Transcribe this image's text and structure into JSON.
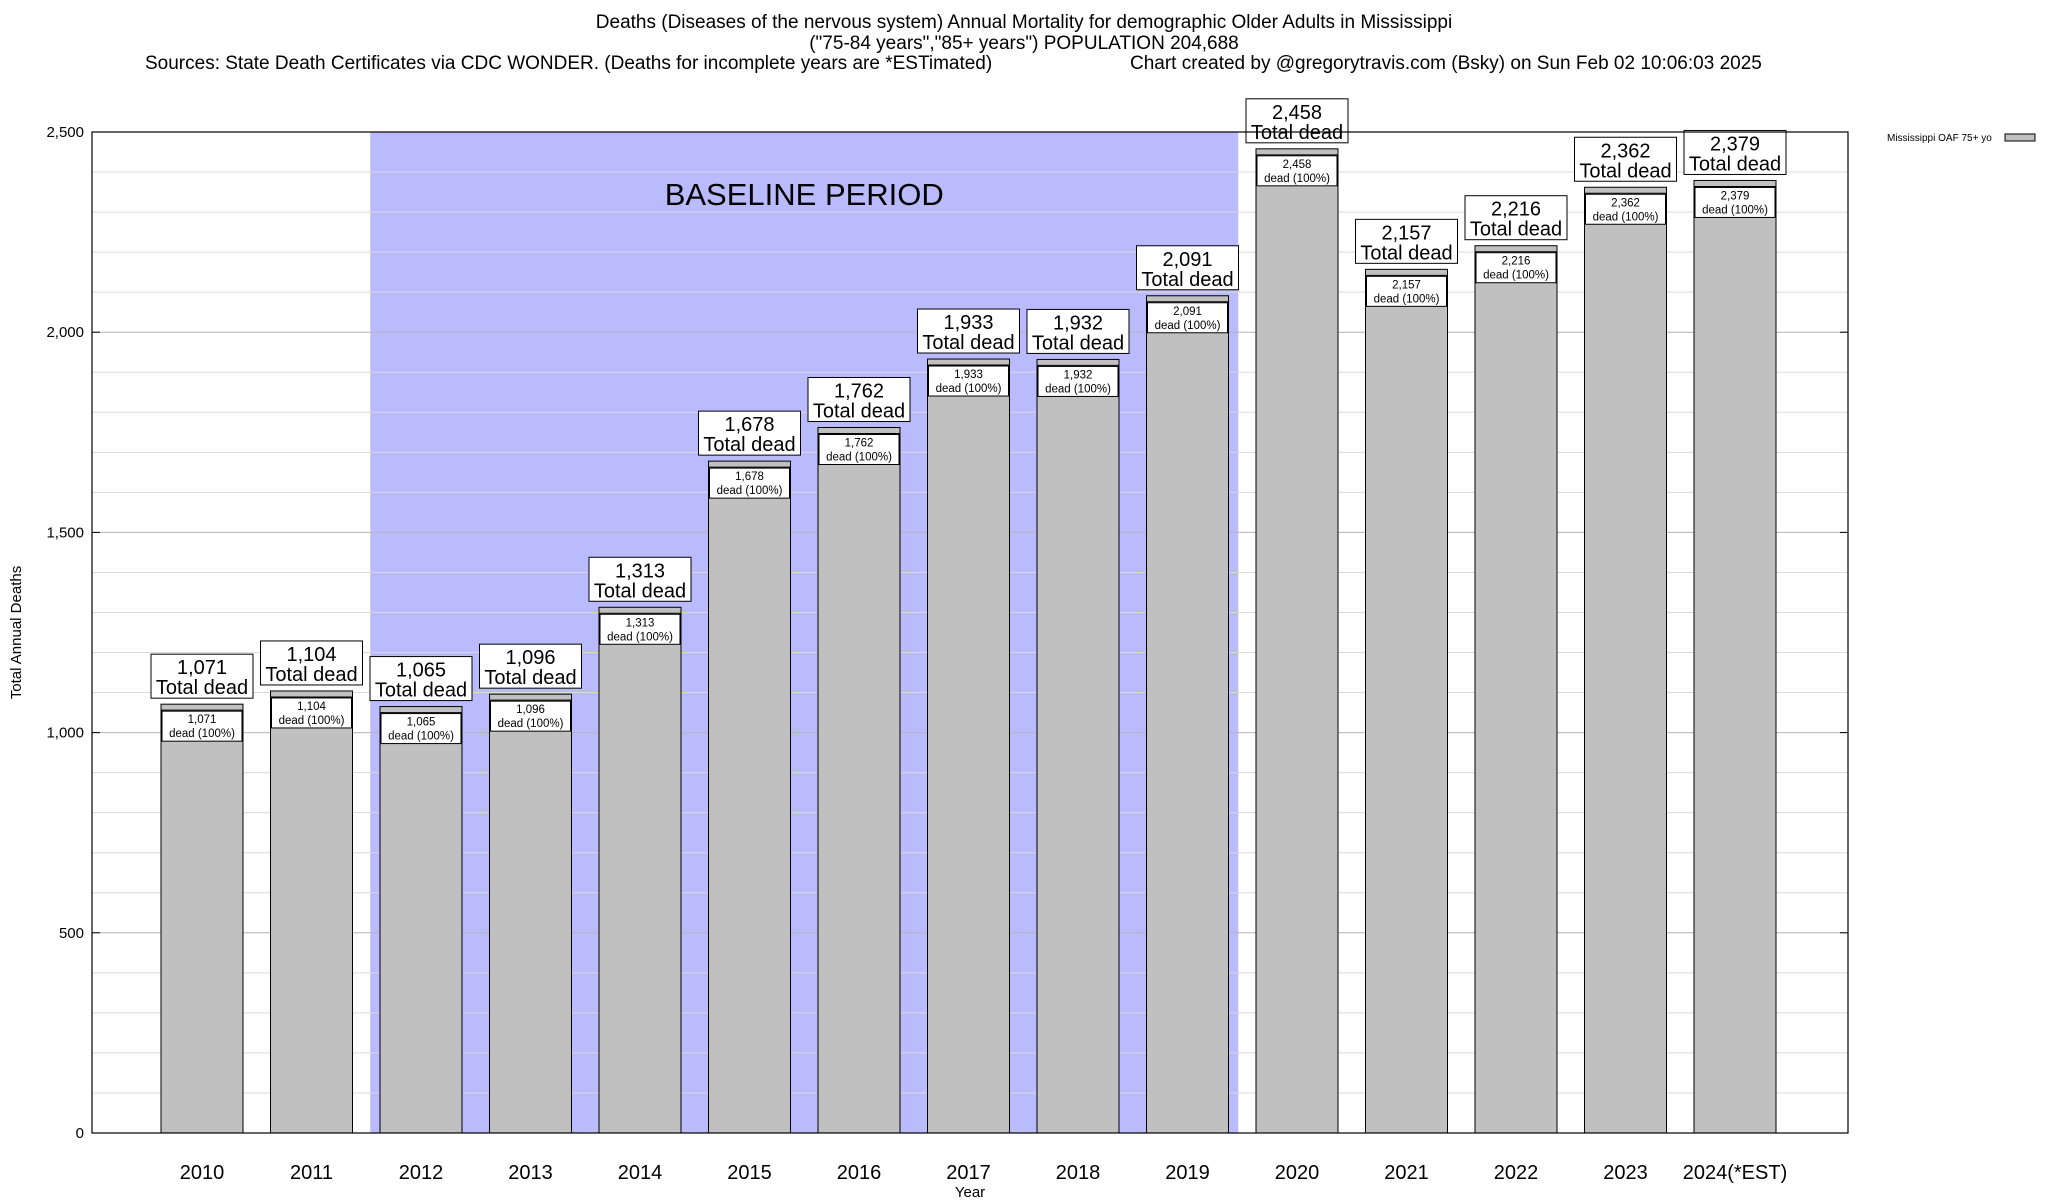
{
  "title": "Deaths (Diseases of the nervous system) Annual Mortality for demographic Older Adults in Mississippi",
  "subtitle": "(\"75-84 years\",\"85+ years\") POPULATION 204,688",
  "sources": "Sources: State Death Certificates via CDC WONDER. (Deaths for incomplete years are *ESTimated)",
  "credit": "Chart created by @gregorytravis.com (Bsky) on Sun Feb 02 10:06:03 2025",
  "colors": {
    "bar_fill": "#c0c0c0",
    "baseline_fill": "#babaff",
    "grid": "#c8c8c8"
  },
  "chart_data": {
    "type": "bar",
    "xlabel": "Year",
    "ylabel": "Total Annual Deaths",
    "ylim": [
      0,
      2500
    ],
    "yticks": [
      0,
      500,
      1000,
      1500,
      2000,
      2500
    ],
    "ytick_labels": [
      "0",
      "500",
      "1,000",
      "1,500",
      "2,000",
      "2,500"
    ],
    "grid": true,
    "legend_position": "top-right",
    "categories": [
      "2010",
      "2011",
      "2012",
      "2013",
      "2014",
      "2015",
      "2016",
      "2017",
      "2018",
      "2019",
      "2020",
      "2021",
      "2022",
      "2023",
      "2024(*EST)"
    ],
    "series": [
      {
        "name": "Mississippi OAF 75+ yo",
        "values": [
          1071,
          1104,
          1065,
          1096,
          1313,
          1678,
          1762,
          1933,
          1932,
          2091,
          2458,
          2157,
          2216,
          2362,
          2379
        ]
      }
    ],
    "value_labels": [
      "1,071",
      "1,104",
      "1,065",
      "1,096",
      "1,313",
      "1,678",
      "1,762",
      "1,933",
      "1,932",
      "2,091",
      "2,458",
      "2,157",
      "2,216",
      "2,362",
      "2,379"
    ],
    "total_label": "Total dead",
    "inner_label": "dead (100%)",
    "baseline": {
      "label": "BASELINE PERIOD",
      "start_year": "2012",
      "end_year": "2019"
    }
  }
}
